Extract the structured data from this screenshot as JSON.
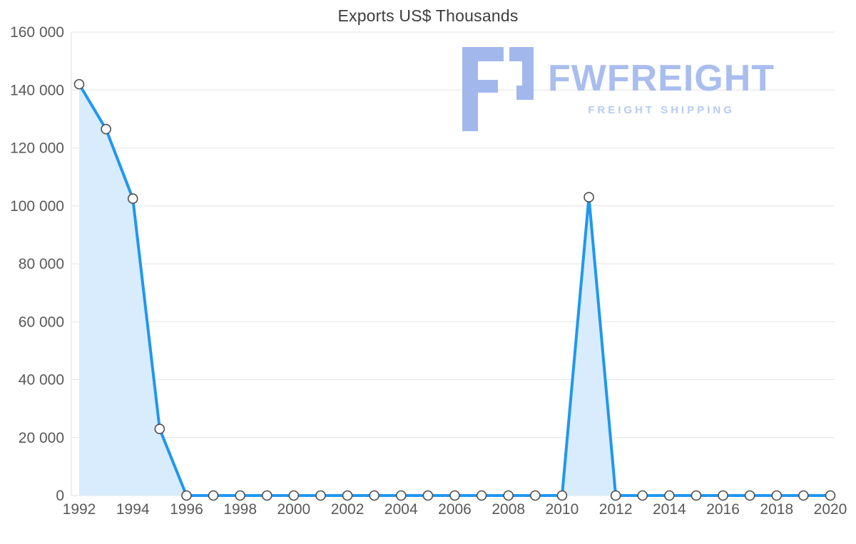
{
  "page": {
    "title": "Exports US$ Thousands"
  },
  "watermark": {
    "brand": "FWFREIGHT",
    "tagline": "FREIGHT SHIPPING",
    "color": "#a9bdee"
  },
  "chart_data": {
    "type": "area",
    "title": "Exports US$ Thousands",
    "xlabel": "",
    "ylabel": "",
    "x": [
      1992,
      1993,
      1994,
      1995,
      1996,
      1997,
      1998,
      1999,
      2000,
      2001,
      2002,
      2003,
      2004,
      2005,
      2006,
      2007,
      2008,
      2009,
      2010,
      2011,
      2012,
      2013,
      2014,
      2015,
      2016,
      2017,
      2018,
      2019,
      2020
    ],
    "values": [
      142000,
      126500,
      102500,
      23000,
      0,
      0,
      0,
      0,
      0,
      0,
      0,
      0,
      0,
      0,
      0,
      0,
      0,
      0,
      0,
      103000,
      0,
      0,
      0,
      0,
      0,
      0,
      0,
      0,
      0
    ],
    "ylim": [
      0,
      160000
    ],
    "yticks": [
      0,
      20000,
      40000,
      60000,
      80000,
      100000,
      120000,
      140000,
      160000
    ],
    "ytick_labels": [
      "0",
      "20 000",
      "40 000",
      "60 000",
      "80 000",
      "100 000",
      "120 000",
      "140 000",
      "160 000"
    ],
    "xtick_labels": [
      "1992",
      "1994",
      "1996",
      "1998",
      "2000",
      "2002",
      "2004",
      "2006",
      "2008",
      "2010",
      "2012",
      "2014",
      "2016",
      "2018",
      "2020"
    ],
    "grid": true,
    "legend": "none",
    "line_color": "#1f97f0",
    "fill_color": "#d9ecfd",
    "marker_fill": "#ffffff",
    "marker_stroke": "#4d4d4d"
  }
}
